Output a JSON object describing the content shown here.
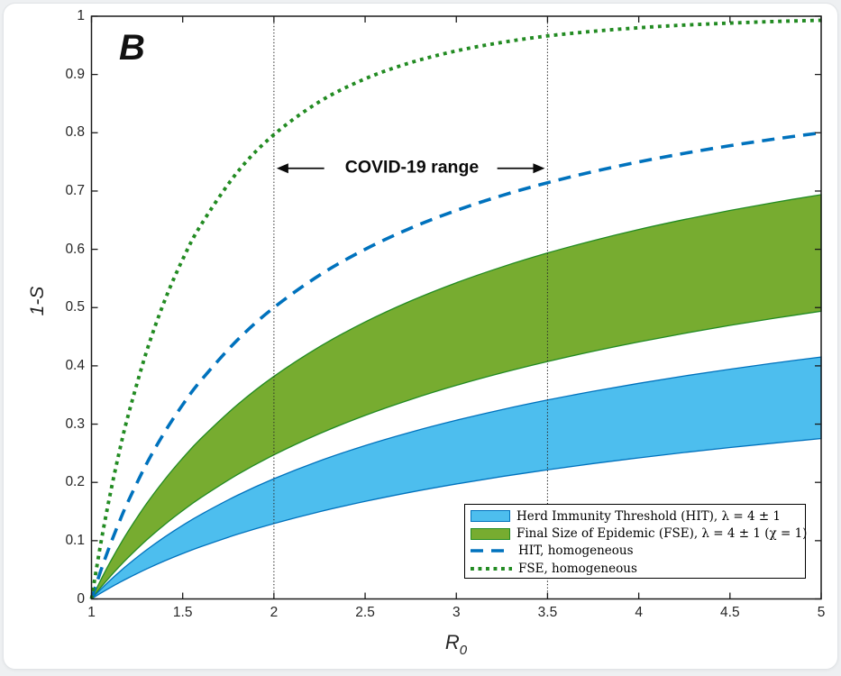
{
  "figure": {
    "panel_label": "B",
    "annotation": {
      "text": "COVID-19 range",
      "x_from": 2,
      "x_to": 3.5,
      "y": 0.739
    }
  },
  "chart_data": {
    "type": "line",
    "title": "",
    "xlabel_main": "R",
    "xlabel_sub": "0",
    "ylabel": "1-S",
    "xlim": [
      1,
      5
    ],
    "ylim": [
      0,
      1
    ],
    "grid": false,
    "x_tick_values": [
      1,
      1.5,
      2,
      2.5,
      3,
      3.5,
      4,
      4.5,
      5
    ],
    "x_tick_labels": [
      "1",
      "1.5",
      "2",
      "2.5",
      "3",
      "3.5",
      "4",
      "4.5",
      "5"
    ],
    "y_tick_values": [
      0,
      0.1,
      0.2,
      0.3,
      0.4,
      0.5,
      0.6,
      0.7,
      0.8,
      0.9,
      1
    ],
    "y_tick_labels": [
      "0",
      "0.1",
      "0.2",
      "0.3",
      "0.4",
      "0.5",
      "0.6",
      "0.7",
      "0.8",
      "0.9",
      "1"
    ],
    "guide_vlines": [
      2,
      3.5
    ],
    "r0": [
      1,
      1.05,
      1.1,
      1.15,
      1.2,
      1.3,
      1.4,
      1.5,
      1.6,
      1.8,
      2,
      2.25,
      2.5,
      2.75,
      3,
      3.25,
      3.5,
      3.75,
      4,
      4.25,
      4.5,
      4.75,
      5
    ],
    "series": [
      {
        "name": "Final Size of Epidemic (FSE), λ = 4 ± 1 (χ = 1)",
        "style": "band",
        "fill": "#77AC30",
        "edge": "#228B22",
        "upper": [
          0,
          0.0321,
          0.0619,
          0.0896,
          0.1156,
          0.1627,
          0.2044,
          0.2417,
          0.2753,
          0.3333,
          0.382,
          0.4328,
          0.4753,
          0.5114,
          0.5426,
          0.5697,
          0.5937,
          0.6149,
          0.634,
          0.6511,
          0.6667,
          0.6808,
          0.6938
        ],
        "lower": [
          0,
          0.0194,
          0.0375,
          0.0546,
          0.0707,
          0.1005,
          0.1273,
          0.1516,
          0.1739,
          0.2133,
          0.2472,
          0.2836,
          0.315,
          0.3423,
          0.3665,
          0.388,
          0.4074,
          0.425,
          0.441,
          0.4558,
          0.4694,
          0.482,
          0.4937
        ]
      },
      {
        "name": "Herd Immunity Threshold (HIT), λ = 4 ± 1",
        "style": "band",
        "fill": "#4DBEEE",
        "edge": "#0072BD",
        "upper": [
          0,
          0.0161,
          0.0313,
          0.0455,
          0.059,
          0.0837,
          0.1061,
          0.1264,
          0.145,
          0.1779,
          0.2063,
          0.2369,
          0.2632,
          0.2862,
          0.3066,
          0.3249,
          0.3414,
          0.3563,
          0.37,
          0.3827,
          0.3943,
          0.4051,
          0.4152
        ],
        "lower": [
          0,
          0.0097,
          0.0189,
          0.0276,
          0.0358,
          0.0511,
          0.0651,
          0.0779,
          0.0897,
          0.1109,
          0.1294,
          0.1497,
          0.1674,
          0.1832,
          0.1973,
          0.2101,
          0.2216,
          0.2323,
          0.2421,
          0.2513,
          0.2598,
          0.2677,
          0.2752
        ]
      },
      {
        "name": "HIT, homogeneous",
        "style": "dashed",
        "color": "#0072BD",
        "values": [
          0,
          0.0476,
          0.0909,
          0.1304,
          0.1667,
          0.2308,
          0.2857,
          0.3333,
          0.375,
          0.4444,
          0.5,
          0.5556,
          0.6,
          0.6364,
          0.6667,
          0.6923,
          0.7143,
          0.7333,
          0.75,
          0.7647,
          0.7778,
          0.7895,
          0.8
        ],
        "note_formula_visible": ""
      },
      {
        "name": "FSE, homogeneous",
        "style": "dotted",
        "color": "#228B22",
        "values": [
          0,
          0.0937,
          0.176,
          0.249,
          0.3138,
          0.4228,
          0.511,
          0.5828,
          0.6418,
          0.7325,
          0.7968,
          0.8534,
          0.8926,
          0.9204,
          0.9405,
          0.9551,
          0.9662,
          0.9741,
          0.9802,
          0.9848,
          0.9882,
          0.991,
          0.993
        ]
      }
    ],
    "legend": {
      "position": "lower right",
      "items": [
        {
          "swatch": "patch",
          "fill": "#4DBEEE",
          "edge": "#0072BD",
          "label": "Herd Immunity Threshold (HIT), λ = 4 ± 1"
        },
        {
          "swatch": "patch",
          "fill": "#77AC30",
          "edge": "#228B22",
          "label": "Final Size of Epidemic (FSE), λ = 4 ± 1 (χ = 1)"
        },
        {
          "swatch": "dashed-line",
          "color": "#0072BD",
          "label": "HIT, homogeneous"
        },
        {
          "swatch": "dotted-line",
          "color": "#228B22",
          "label": "FSE, homogeneous"
        }
      ]
    },
    "colors": {
      "frame": "#1a1a1a",
      "tick_text": "#262626",
      "guide_line": "#2b2b2b",
      "annotation": "#0b0b0b"
    }
  }
}
